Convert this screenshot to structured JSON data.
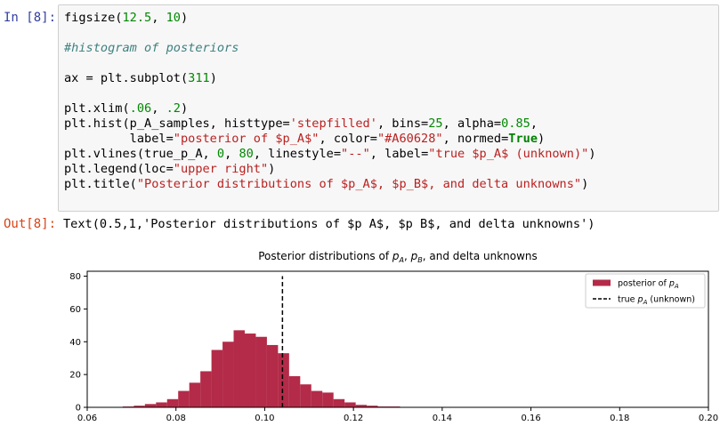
{
  "input_prompt": "In [8]:",
  "output_prompt": "Out[8]:",
  "code_lines": [
    [
      {
        "t": "figsize(",
        "c": ""
      },
      {
        "t": "12.5",
        "c": "num"
      },
      {
        "t": ", ",
        "c": ""
      },
      {
        "t": "10",
        "c": "num"
      },
      {
        "t": ")",
        "c": ""
      }
    ],
    [],
    [
      {
        "t": "#histogram of posteriors",
        "c": "com"
      }
    ],
    [],
    [
      {
        "t": "ax = plt.subplot(",
        "c": ""
      },
      {
        "t": "311",
        "c": "num"
      },
      {
        "t": ")",
        "c": ""
      }
    ],
    [],
    [
      {
        "t": "plt.xlim(",
        "c": ""
      },
      {
        "t": ".06",
        "c": "num"
      },
      {
        "t": ", ",
        "c": ""
      },
      {
        "t": ".2",
        "c": "num"
      },
      {
        "t": ")",
        "c": ""
      }
    ],
    [
      {
        "t": "plt.hist(p_A_samples, histtype=",
        "c": ""
      },
      {
        "t": "'stepfilled'",
        "c": "str"
      },
      {
        "t": ", bins=",
        "c": ""
      },
      {
        "t": "25",
        "c": "num"
      },
      {
        "t": ", alpha=",
        "c": ""
      },
      {
        "t": "0.85",
        "c": "num"
      },
      {
        "t": ",",
        "c": ""
      }
    ],
    [
      {
        "t": "         label=",
        "c": ""
      },
      {
        "t": "\"posterior of $p_A$\"",
        "c": "str"
      },
      {
        "t": ", color=",
        "c": ""
      },
      {
        "t": "\"#A60628\"",
        "c": "str"
      },
      {
        "t": ", normed=",
        "c": ""
      },
      {
        "t": "True",
        "c": "kw"
      },
      {
        "t": ")",
        "c": ""
      }
    ],
    [
      {
        "t": "plt.vlines(true_p_A, ",
        "c": ""
      },
      {
        "t": "0",
        "c": "num"
      },
      {
        "t": ", ",
        "c": ""
      },
      {
        "t": "80",
        "c": "num"
      },
      {
        "t": ", linestyle=",
        "c": ""
      },
      {
        "t": "\"--\"",
        "c": "str"
      },
      {
        "t": ", label=",
        "c": ""
      },
      {
        "t": "\"true $p_A$ (unknown)\"",
        "c": "str"
      },
      {
        "t": ")",
        "c": ""
      }
    ],
    [
      {
        "t": "plt.legend(loc=",
        "c": ""
      },
      {
        "t": "\"upper right\"",
        "c": "str"
      },
      {
        "t": ")",
        "c": ""
      }
    ],
    [
      {
        "t": "plt.title(",
        "c": ""
      },
      {
        "t": "\"Posterior distributions of $p_A$, $p_B$, and delta unknowns\"",
        "c": "str"
      },
      {
        "t": ")",
        "c": ""
      }
    ]
  ],
  "output_text": "Text(0.5,1,'Posterior distributions of $p A$, $p B$, and delta unknowns')",
  "chart_data": {
    "type": "bar",
    "title_parts": [
      "Posterior distributions of ",
      "p",
      "A",
      ", ",
      "p",
      "B",
      ", and delta unknowns"
    ],
    "xlim": [
      0.06,
      0.2
    ],
    "ylim": [
      0,
      83
    ],
    "xticks": [
      0.06,
      0.08,
      0.1,
      0.12,
      0.14,
      0.16,
      0.18,
      0.2
    ],
    "xtick_labels": [
      "0.06",
      "0.08",
      "0.10",
      "0.12",
      "0.14",
      "0.16",
      "0.18",
      "0.20"
    ],
    "yticks": [
      0,
      20,
      40,
      60,
      80
    ],
    "ytick_labels": [
      "0",
      "20",
      "40",
      "60",
      "80"
    ],
    "histogram": {
      "bin_edges": [
        0.068,
        0.0705,
        0.073,
        0.0755,
        0.078,
        0.0805,
        0.083,
        0.0855,
        0.088,
        0.0905,
        0.093,
        0.0955,
        0.098,
        0.1005,
        0.103,
        0.1055,
        0.108,
        0.1105,
        0.113,
        0.1155,
        0.118,
        0.1205,
        0.123,
        0.1255,
        0.128,
        0.1305
      ],
      "density": [
        0.5,
        1,
        2,
        3,
        5,
        10,
        15,
        22,
        35,
        40,
        47,
        45,
        43,
        38,
        33,
        19,
        14,
        10,
        9,
        5,
        3,
        1.5,
        1,
        0.5,
        0.5
      ],
      "color": "#A60628",
      "alpha": 0.85
    },
    "vline": {
      "x": 0.104,
      "ymin": 0,
      "ymax": 80,
      "style": "dashed",
      "color": "#000000"
    },
    "legend": {
      "placement": "upper right",
      "entries": [
        {
          "prefix": "posterior of ",
          "var": "p",
          "sub": "A",
          "suffix": "",
          "kind": "patch",
          "color": "#A60628"
        },
        {
          "prefix": "true ",
          "var": "p",
          "sub": "A",
          "suffix": " (unknown)",
          "kind": "dashed-line",
          "color": "#000000"
        }
      ]
    }
  }
}
